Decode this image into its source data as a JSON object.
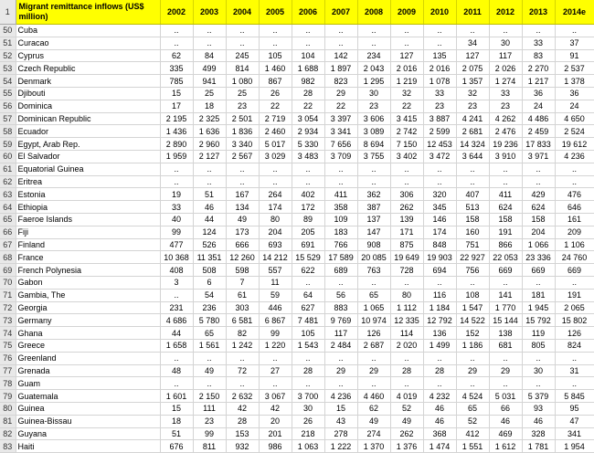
{
  "header": {
    "row_number": "1",
    "title": "Migrant remittance inflows (US$ million)",
    "years": [
      "2002",
      "2003",
      "2004",
      "2005",
      "2006",
      "2007",
      "2008",
      "2009",
      "2010",
      "2011",
      "2012",
      "2013",
      "2014e"
    ]
  },
  "rows": [
    {
      "n": "50",
      "country": "Cuba",
      "v": [
        "..",
        "..",
        "..",
        "..",
        "..",
        "..",
        "..",
        "..",
        "..",
        "..",
        "..",
        "..",
        ".."
      ]
    },
    {
      "n": "51",
      "country": "Curacao",
      "v": [
        "..",
        "..",
        "..",
        "..",
        "..",
        "..",
        "..",
        "..",
        "..",
        "34",
        "30",
        "33",
        "37"
      ]
    },
    {
      "n": "52",
      "country": "Cyprus",
      "v": [
        "62",
        "84",
        "245",
        "105",
        "104",
        "142",
        "234",
        "127",
        "135",
        "127",
        "117",
        "83",
        "91"
      ]
    },
    {
      "n": "53",
      "country": "Czech Republic",
      "v": [
        "335",
        "499",
        "814",
        "1 460",
        "1 688",
        "1 897",
        "2 043",
        "2 016",
        "2 016",
        "2 075",
        "2 026",
        "2 270",
        "2 537"
      ]
    },
    {
      "n": "54",
      "country": "Denmark",
      "v": [
        "785",
        "941",
        "1 080",
        "867",
        "982",
        "823",
        "1 295",
        "1 219",
        "1 078",
        "1 357",
        "1 274",
        "1 217",
        "1 378"
      ]
    },
    {
      "n": "55",
      "country": "Djibouti",
      "v": [
        "15",
        "25",
        "25",
        "26",
        "28",
        "29",
        "30",
        "32",
        "33",
        "32",
        "33",
        "36",
        "36"
      ]
    },
    {
      "n": "56",
      "country": "Dominica",
      "v": [
        "17",
        "18",
        "23",
        "22",
        "22",
        "22",
        "23",
        "22",
        "23",
        "23",
        "23",
        "24",
        "24"
      ]
    },
    {
      "n": "57",
      "country": "Dominican Republic",
      "v": [
        "2 195",
        "2 325",
        "2 501",
        "2 719",
        "3 054",
        "3 397",
        "3 606",
        "3 415",
        "3 887",
        "4 241",
        "4 262",
        "4 486",
        "4 650"
      ]
    },
    {
      "n": "58",
      "country": "Ecuador",
      "v": [
        "1 436",
        "1 636",
        "1 836",
        "2 460",
        "2 934",
        "3 341",
        "3 089",
        "2 742",
        "2 599",
        "2 681",
        "2 476",
        "2 459",
        "2 524"
      ]
    },
    {
      "n": "59",
      "country": "Egypt, Arab Rep.",
      "v": [
        "2 890",
        "2 960",
        "3 340",
        "5 017",
        "5 330",
        "7 656",
        "8 694",
        "7 150",
        "12 453",
        "14 324",
        "19 236",
        "17 833",
        "19 612"
      ]
    },
    {
      "n": "60",
      "country": "El Salvador",
      "v": [
        "1 959",
        "2 127",
        "2 567",
        "3 029",
        "3 483",
        "3 709",
        "3 755",
        "3 402",
        "3 472",
        "3 644",
        "3 910",
        "3 971",
        "4 236"
      ]
    },
    {
      "n": "61",
      "country": "Equatorial Guinea",
      "v": [
        "..",
        "..",
        "..",
        "..",
        "..",
        "..",
        "..",
        "..",
        "..",
        "..",
        "..",
        "..",
        ".."
      ]
    },
    {
      "n": "62",
      "country": "Eritrea",
      "v": [
        "..",
        "..",
        "..",
        "..",
        "..",
        "..",
        "..",
        "..",
        "..",
        "..",
        "..",
        "..",
        ".."
      ]
    },
    {
      "n": "63",
      "country": "Estonia",
      "v": [
        "19",
        "51",
        "167",
        "264",
        "402",
        "411",
        "362",
        "306",
        "320",
        "407",
        "411",
        "429",
        "476"
      ]
    },
    {
      "n": "64",
      "country": "Ethiopia",
      "v": [
        "33",
        "46",
        "134",
        "174",
        "172",
        "358",
        "387",
        "262",
        "345",
        "513",
        "624",
        "624",
        "646"
      ]
    },
    {
      "n": "65",
      "country": "Faeroe Islands",
      "v": [
        "40",
        "44",
        "49",
        "80",
        "89",
        "109",
        "137",
        "139",
        "146",
        "158",
        "158",
        "158",
        "161"
      ]
    },
    {
      "n": "66",
      "country": "Fiji",
      "v": [
        "99",
        "124",
        "173",
        "204",
        "205",
        "183",
        "147",
        "171",
        "174",
        "160",
        "191",
        "204",
        "209"
      ]
    },
    {
      "n": "67",
      "country": "Finland",
      "v": [
        "477",
        "526",
        "666",
        "693",
        "691",
        "766",
        "908",
        "875",
        "848",
        "751",
        "866",
        "1 066",
        "1 106"
      ]
    },
    {
      "n": "68",
      "country": "France",
      "v": [
        "10 368",
        "11 351",
        "12 260",
        "14 212",
        "15 529",
        "17 589",
        "20 085",
        "19 649",
        "19 903",
        "22 927",
        "22 053",
        "23 336",
        "24 760"
      ]
    },
    {
      "n": "69",
      "country": "French Polynesia",
      "v": [
        "408",
        "508",
        "598",
        "557",
        "622",
        "689",
        "763",
        "728",
        "694",
        "756",
        "669",
        "669",
        "669"
      ]
    },
    {
      "n": "70",
      "country": "Gabon",
      "v": [
        "3",
        "6",
        "7",
        "11",
        "..",
        "..",
        "..",
        "..",
        "..",
        "..",
        "..",
        "..",
        ".."
      ]
    },
    {
      "n": "71",
      "country": "Gambia, The",
      "v": [
        "..",
        "54",
        "61",
        "59",
        "64",
        "56",
        "65",
        "80",
        "116",
        "108",
        "141",
        "181",
        "191"
      ]
    },
    {
      "n": "72",
      "country": "Georgia",
      "v": [
        "231",
        "236",
        "303",
        "446",
        "627",
        "883",
        "1 065",
        "1 112",
        "1 184",
        "1 547",
        "1 770",
        "1 945",
        "2 065"
      ]
    },
    {
      "n": "73",
      "country": "Germany",
      "v": [
        "4 686",
        "5 780",
        "6 581",
        "6 867",
        "7 481",
        "9 769",
        "10 974",
        "12 335",
        "12 792",
        "14 522",
        "15 144",
        "15 792",
        "15 802"
      ]
    },
    {
      "n": "74",
      "country": "Ghana",
      "v": [
        "44",
        "65",
        "82",
        "99",
        "105",
        "117",
        "126",
        "114",
        "136",
        "152",
        "138",
        "119",
        "126"
      ]
    },
    {
      "n": "75",
      "country": "Greece",
      "v": [
        "1 658",
        "1 561",
        "1 242",
        "1 220",
        "1 543",
        "2 484",
        "2 687",
        "2 020",
        "1 499",
        "1 186",
        "681",
        "805",
        "824"
      ]
    },
    {
      "n": "76",
      "country": "Greenland",
      "v": [
        "..",
        "..",
        "..",
        "..",
        "..",
        "..",
        "..",
        "..",
        "..",
        "..",
        "..",
        "..",
        ".."
      ]
    },
    {
      "n": "77",
      "country": "Grenada",
      "v": [
        "48",
        "49",
        "72",
        "27",
        "28",
        "29",
        "29",
        "28",
        "28",
        "29",
        "29",
        "30",
        "31"
      ]
    },
    {
      "n": "78",
      "country": "Guam",
      "v": [
        "..",
        "..",
        "..",
        "..",
        "..",
        "..",
        "..",
        "..",
        "..",
        "..",
        "..",
        "..",
        ".."
      ]
    },
    {
      "n": "79",
      "country": "Guatemala",
      "v": [
        "1 601",
        "2 150",
        "2 632",
        "3 067",
        "3 700",
        "4 236",
        "4 460",
        "4 019",
        "4 232",
        "4 524",
        "5 031",
        "5 379",
        "5 845"
      ]
    },
    {
      "n": "80",
      "country": "Guinea",
      "v": [
        "15",
        "111",
        "42",
        "42",
        "30",
        "15",
        "62",
        "52",
        "46",
        "65",
        "66",
        "93",
        "95"
      ]
    },
    {
      "n": "81",
      "country": "Guinea-Bissau",
      "v": [
        "18",
        "23",
        "28",
        "20",
        "26",
        "43",
        "49",
        "49",
        "46",
        "52",
        "46",
        "46",
        "47"
      ]
    },
    {
      "n": "82",
      "country": "Guyana",
      "v": [
        "51",
        "99",
        "153",
        "201",
        "218",
        "278",
        "274",
        "262",
        "368",
        "412",
        "469",
        "328",
        "341"
      ]
    },
    {
      "n": "83",
      "country": "Haiti",
      "v": [
        "676",
        "811",
        "932",
        "986",
        "1 063",
        "1 222",
        "1 370",
        "1 376",
        "1 474",
        "1 551",
        "1 612",
        "1 781",
        "1 954"
      ]
    }
  ]
}
